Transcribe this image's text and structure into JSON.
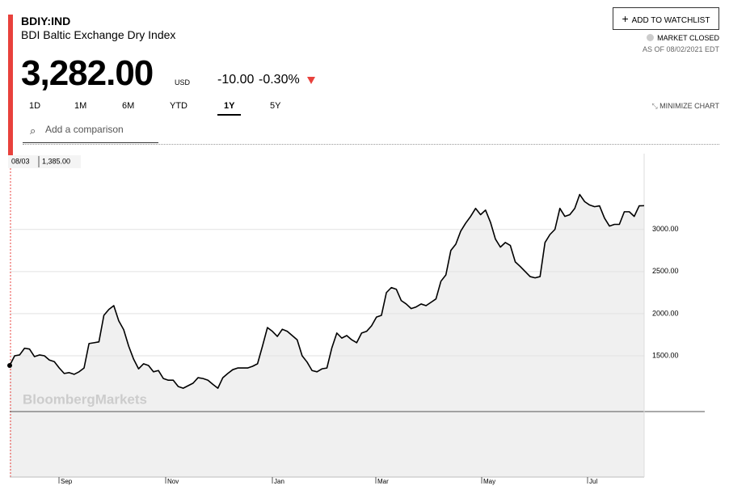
{
  "header": {
    "ticker": "BDIY:IND",
    "name": "BDI Baltic Exchange Dry Index",
    "price": "3,282.00",
    "currency": "USD",
    "change": "-10.00",
    "change_pct": "-0.30%",
    "watchlist": "ADD TO WATCHLIST",
    "market_status": "MARKET CLOSED",
    "as_of": "AS OF 08/02/2021 EDT"
  },
  "ranges": [
    "1D",
    "1M",
    "6M",
    "YTD",
    "1Y",
    "5Y"
  ],
  "active_range": 4,
  "minimize": "MINIMIZE CHART",
  "comparison_placeholder": "Add a comparison",
  "watermark": "BloombergMarkets",
  "chart_data": {
    "type": "line",
    "color": "#000000",
    "fill": "#f0f0f0",
    "grid": true,
    "tooltip": {
      "date": "08/03",
      "value": "1,385.00"
    },
    "x_labels": [
      "Sep",
      "Nov",
      "Jan",
      "Mar",
      "May",
      "Jul"
    ],
    "ylim": [
      60,
      3900
    ],
    "yticks": [
      {
        "value": 3000,
        "label": "3000.00"
      },
      {
        "value": 2500,
        "label": "2500.00"
      },
      {
        "value": 2000,
        "label": "2000.00"
      },
      {
        "value": 1500,
        "label": "1500.00"
      }
    ],
    "values": [
      1385,
      1500,
      1510,
      1590,
      1580,
      1490,
      1510,
      1500,
      1450,
      1430,
      1355,
      1290,
      1300,
      1280,
      1310,
      1355,
      1645,
      1655,
      1665,
      1980,
      2050,
      2095,
      1915,
      1810,
      1615,
      1460,
      1345,
      1405,
      1385,
      1310,
      1325,
      1230,
      1210,
      1210,
      1135,
      1115,
      1145,
      1175,
      1240,
      1230,
      1210,
      1160,
      1115,
      1240,
      1290,
      1335,
      1355,
      1355,
      1355,
      1375,
      1405,
      1615,
      1835,
      1790,
      1730,
      1815,
      1790,
      1740,
      1690,
      1500,
      1425,
      1325,
      1310,
      1345,
      1355,
      1595,
      1770,
      1710,
      1740,
      1690,
      1655,
      1770,
      1790,
      1855,
      1960,
      1980,
      2250,
      2310,
      2290,
      2155,
      2115,
      2060,
      2080,
      2115,
      2095,
      2135,
      2175,
      2385,
      2460,
      2750,
      2825,
      2980,
      3075,
      3155,
      3250,
      3175,
      3230,
      3085,
      2885,
      2790,
      2845,
      2810,
      2615,
      2560,
      2500,
      2440,
      2425,
      2440,
      2845,
      2940,
      3000,
      3250,
      3155,
      3175,
      3250,
      3415,
      3330,
      3290,
      3270,
      3280,
      3135,
      3040,
      3060,
      3060,
      3210,
      3210,
      3155,
      3280,
      3282
    ]
  }
}
